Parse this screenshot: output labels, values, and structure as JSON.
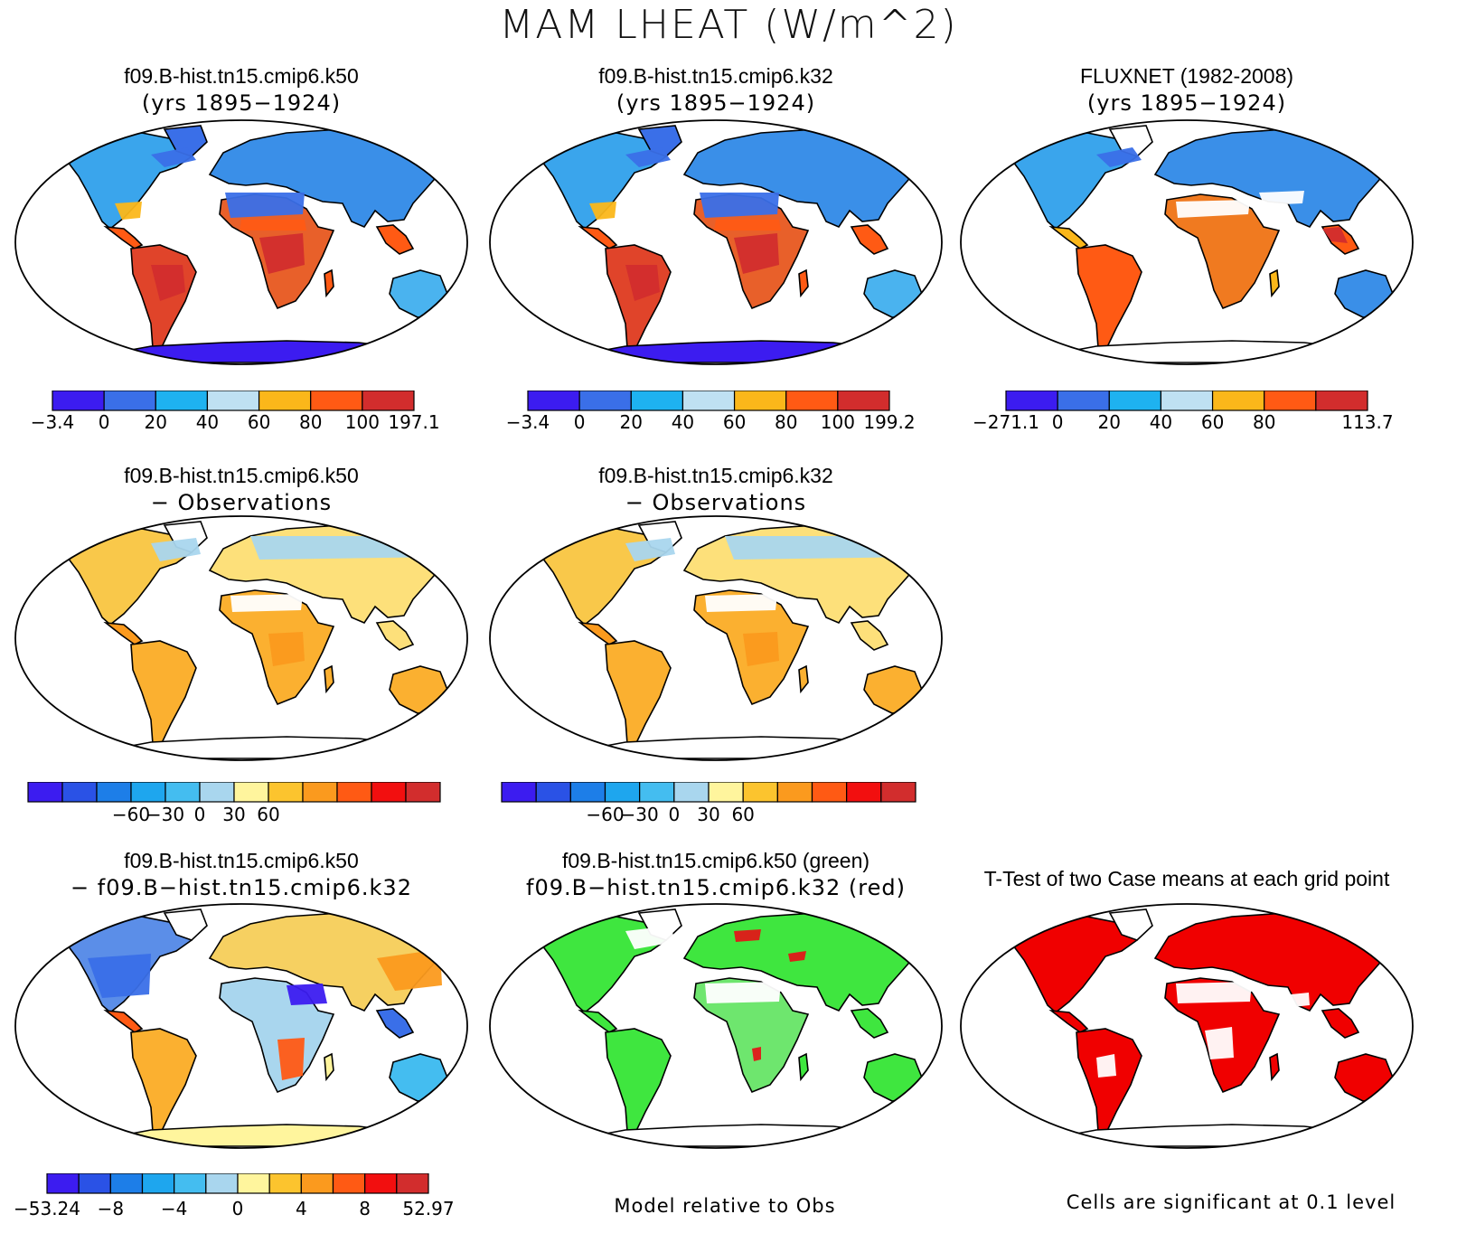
{
  "figure": {
    "title": "MAM LHEAT (W/m^2)"
  },
  "panels": [
    {
      "id": "p1",
      "title": "f09.B-hist.tn15.cmip6.k50",
      "subtitle": "(yrs 1895−1924)",
      "style": "abs",
      "colorbar": {
        "colors": [
          "#3c1cf0",
          "#3a6fe8",
          "#1eb2f0",
          "#bfe1f2",
          "#fbb71a",
          "#ff5a14",
          "#d22d2d"
        ],
        "labels": [
          "−3.4",
          "0",
          "20",
          "40",
          "60",
          "80",
          "100",
          "197.1"
        ]
      }
    },
    {
      "id": "p2",
      "title": "f09.B-hist.tn15.cmip6.k32",
      "subtitle": "(yrs 1895−1924)",
      "style": "abs",
      "colorbar": {
        "colors": [
          "#3c1cf0",
          "#3a6fe8",
          "#1eb2f0",
          "#bfe1f2",
          "#fbb71a",
          "#ff5a14",
          "#d22d2d"
        ],
        "labels": [
          "−3.4",
          "0",
          "20",
          "40",
          "60",
          "80",
          "100",
          "199.2"
        ]
      }
    },
    {
      "id": "p3",
      "title": "FLUXNET (1982-2008)",
      "subtitle": "(yrs 1895−1924)",
      "style": "obs",
      "colorbar": {
        "colors": [
          "#3c1cf0",
          "#3a6fe8",
          "#1eb2f0",
          "#bfe1f2",
          "#fbb71a",
          "#ff5a14",
          "#d22d2d"
        ],
        "labels": [
          "−271.1",
          "0",
          "20",
          "40",
          "60",
          "80",
          "",
          "113.7"
        ]
      }
    },
    {
      "id": "p4",
      "title": "f09.B-hist.tn15.cmip6.k50",
      "subtitle": "− Observations",
      "style": "diff",
      "colorbar": {
        "colors": [
          "#3c1cf0",
          "#2a52e6",
          "#1d7ee8",
          "#1ea6ee",
          "#44bdf0",
          "#a9d6ee",
          "#fff59d",
          "#fcc42e",
          "#fb9a1e",
          "#ff5a14",
          "#f20f0f",
          "#d22d2d"
        ],
        "labels": [
          "",
          "",
          "−60",
          "−30",
          "0",
          "30",
          "60",
          "",
          "",
          "",
          "",
          ""
        ]
      }
    },
    {
      "id": "p5",
      "title": "f09.B-hist.tn15.cmip6.k32",
      "subtitle": "− Observations",
      "style": "diff",
      "colorbar": {
        "colors": [
          "#3c1cf0",
          "#2a52e6",
          "#1d7ee8",
          "#1ea6ee",
          "#44bdf0",
          "#a9d6ee",
          "#fff59d",
          "#fcc42e",
          "#fb9a1e",
          "#ff5a14",
          "#f20f0f",
          "#d22d2d"
        ],
        "labels": [
          "",
          "",
          "−60",
          "−30",
          "0",
          "30",
          "60",
          "",
          "",
          "",
          "",
          ""
        ]
      }
    },
    {
      "id": "p6",
      "title": "f09.B-hist.tn15.cmip6.k50",
      "subtitle": "− f09.B−hist.tn15.cmip6.k32",
      "style": "casediff",
      "colorbar": {
        "colors": [
          "#3c1cf0",
          "#2a52e6",
          "#1d7ee8",
          "#1ea6ee",
          "#44bdf0",
          "#a9d6ee",
          "#fff59d",
          "#fcc42e",
          "#fb9a1e",
          "#ff5a14",
          "#f20f0f",
          "#d22d2d"
        ],
        "labels": [
          "−53.24",
          "−8",
          "−4",
          "0",
          "4",
          "8",
          "52.97"
        ]
      }
    },
    {
      "id": "p7",
      "title": "f09.B-hist.tn15.cmip6.k50 (green)",
      "subtitle": "f09.B−hist.tn15.cmip6.k32 (red)",
      "style": "greenred",
      "footnote": "Model relative to Obs"
    },
    {
      "id": "p8",
      "title": "T-Test of two Case means at each grid point",
      "subtitle": "",
      "style": "ttest",
      "footnote": "Cells are significant at 0.1 level"
    }
  ]
}
